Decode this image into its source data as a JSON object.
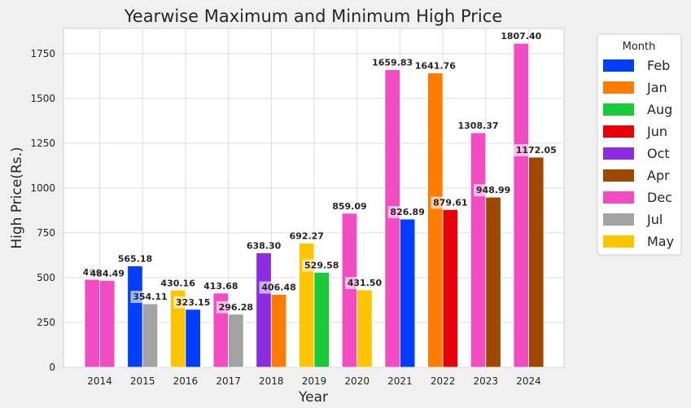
{
  "chart_data": {
    "type": "bar",
    "title": "Yearwise Maximum and Minimum High Price",
    "xlabel": "Year",
    "ylabel": "High Price(Rs.)",
    "ylim": [
      0,
      1890
    ],
    "yticks": [
      0,
      250,
      500,
      750,
      1000,
      1250,
      1500,
      1750
    ],
    "grid": true,
    "legend": {
      "title": "Month",
      "placement": "right",
      "entries": [
        {
          "name": "Feb",
          "color": "#023eff"
        },
        {
          "name": "Jan",
          "color": "#ff7c00"
        },
        {
          "name": "Aug",
          "color": "#1ac938"
        },
        {
          "name": "Jun",
          "color": "#e8000b"
        },
        {
          "name": "Oct",
          "color": "#8b2be2"
        },
        {
          "name": "Apr",
          "color": "#9f4800"
        },
        {
          "name": "Dec",
          "color": "#f14cc1"
        },
        {
          "name": "Jul",
          "color": "#a3a3a3"
        },
        {
          "name": "May",
          "color": "#ffc400"
        }
      ]
    },
    "categories": [
      "2014",
      "2015",
      "2016",
      "2017",
      "2018",
      "2019",
      "2020",
      "2021",
      "2022",
      "2023",
      "2024"
    ],
    "bars": [
      {
        "year": "2014",
        "max": {
          "value": 490,
          "month": "Dec",
          "label": "490"
        },
        "min": {
          "value": 484.49,
          "month": "Dec",
          "label": "484.49"
        }
      },
      {
        "year": "2015",
        "max": {
          "value": 565.18,
          "month": "Feb",
          "label": "565.18"
        },
        "min": {
          "value": 354.11,
          "month": "Jul",
          "label": "354.11"
        }
      },
      {
        "year": "2016",
        "max": {
          "value": 430.16,
          "month": "May",
          "label": "430.16"
        },
        "min": {
          "value": 323.15,
          "month": "Feb",
          "label": "323.15"
        }
      },
      {
        "year": "2017",
        "max": {
          "value": 413.68,
          "month": "Dec",
          "label": "413.68"
        },
        "min": {
          "value": 296.28,
          "month": "Jul",
          "label": "296.28"
        }
      },
      {
        "year": "2018",
        "max": {
          "value": 638.3,
          "month": "Oct",
          "label": "638.30"
        },
        "min": {
          "value": 406.48,
          "month": "Jan",
          "label": "406.48"
        }
      },
      {
        "year": "2019",
        "max": {
          "value": 692.27,
          "month": "May",
          "label": "692.27"
        },
        "min": {
          "value": 529.58,
          "month": "Aug",
          "label": "529.58"
        }
      },
      {
        "year": "2020",
        "max": {
          "value": 859.09,
          "month": "Dec",
          "label": "859.09"
        },
        "min": {
          "value": 431.5,
          "month": "May",
          "label": "431.50"
        }
      },
      {
        "year": "2021",
        "max": {
          "value": 1659.83,
          "month": "Dec",
          "label": "1659.83"
        },
        "min": {
          "value": 826.89,
          "month": "Feb",
          "label": "826.89"
        }
      },
      {
        "year": "2022",
        "max": {
          "value": 1641.76,
          "month": "Jan",
          "label": "1641.76"
        },
        "min": {
          "value": 879.61,
          "month": "Jun",
          "label": "879.61"
        }
      },
      {
        "year": "2023",
        "max": {
          "value": 1308.37,
          "month": "Dec",
          "label": "1308.37"
        },
        "min": {
          "value": 948.99,
          "month": "Apr",
          "label": "948.99"
        }
      },
      {
        "year": "2024",
        "max": {
          "value": 1807.4,
          "month": "Dec",
          "label": "1807.40"
        },
        "min": {
          "value": 1172.05,
          "month": "Apr",
          "label": "1172.05"
        }
      }
    ]
  }
}
